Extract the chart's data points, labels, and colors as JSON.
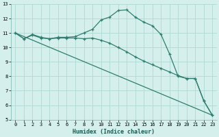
{
  "line1_x": [
    0,
    1,
    2,
    3,
    4,
    5,
    6,
    7,
    8,
    9,
    10,
    11,
    12,
    13,
    14,
    15,
    16,
    17,
    18,
    19,
    20,
    21,
    22,
    23
  ],
  "line1_y": [
    11.0,
    10.6,
    10.9,
    10.7,
    10.6,
    10.7,
    10.7,
    10.75,
    11.0,
    11.25,
    11.9,
    12.1,
    12.55,
    12.6,
    12.1,
    11.75,
    11.5,
    10.9,
    9.55,
    8.0,
    7.85,
    7.85,
    6.3,
    5.3
  ],
  "line2_x": [
    0,
    1,
    2,
    3,
    4,
    5,
    6,
    7,
    8,
    9,
    10,
    11,
    12,
    13,
    14,
    15,
    16,
    17,
    18,
    19,
    20,
    21,
    22,
    23
  ],
  "line2_y": [
    11.0,
    10.6,
    10.85,
    10.65,
    10.6,
    10.65,
    10.65,
    10.65,
    10.6,
    10.65,
    10.5,
    10.3,
    10.0,
    9.7,
    9.35,
    9.05,
    8.8,
    8.55,
    8.3,
    8.05,
    7.85,
    7.85,
    6.3,
    5.3
  ],
  "line3_x": [
    0,
    23
  ],
  "line3_y": [
    11.0,
    5.3
  ],
  "line_color": "#2e7d6e",
  "bg_color": "#d4efec",
  "grid_color": "#afd8d3",
  "xlabel": "Humidex (Indice chaleur)",
  "xlim": [
    -0.5,
    23.5
  ],
  "ylim": [
    5,
    13
  ],
  "yticks": [
    5,
    6,
    7,
    8,
    9,
    10,
    11,
    12,
    13
  ],
  "xticks": [
    0,
    1,
    2,
    3,
    4,
    5,
    6,
    7,
    8,
    9,
    10,
    11,
    12,
    13,
    14,
    15,
    16,
    17,
    18,
    19,
    20,
    21,
    22,
    23
  ],
  "marker": "+",
  "markersize": 3.5,
  "linewidth": 0.9,
  "tick_fontsize": 5.0,
  "xlabel_fontsize": 6.0
}
